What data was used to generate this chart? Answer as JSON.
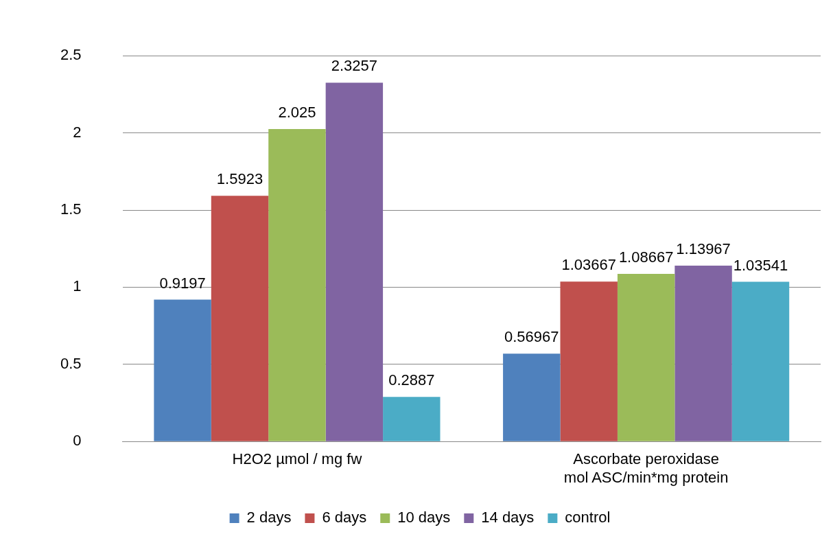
{
  "chart_data": {
    "type": "bar",
    "categories": [
      "H2O2 µmol / mg fw",
      "Ascorbate peroxidase\nmol ASC/min*mg protein"
    ],
    "series": [
      {
        "name": "2 days",
        "color": "#4f81bd",
        "values": [
          0.9197,
          0.56967
        ]
      },
      {
        "name": "6 days",
        "color": "#c0504d",
        "values": [
          1.5923,
          1.03667
        ]
      },
      {
        "name": "10 days",
        "color": "#9bbb59",
        "values": [
          2.025,
          1.08667
        ]
      },
      {
        "name": "14 days",
        "color": "#8064a2",
        "values": [
          2.3257,
          1.13967
        ]
      },
      {
        "name": "control",
        "color": "#4bacc6",
        "values": [
          0.2887,
          1.03541
        ]
      }
    ],
    "ylim": [
      0,
      2.5
    ],
    "yticks": [
      0,
      0.5,
      1,
      1.5,
      2,
      2.5
    ],
    "grid": "y",
    "legend": "bottom",
    "data_labels": true
  }
}
